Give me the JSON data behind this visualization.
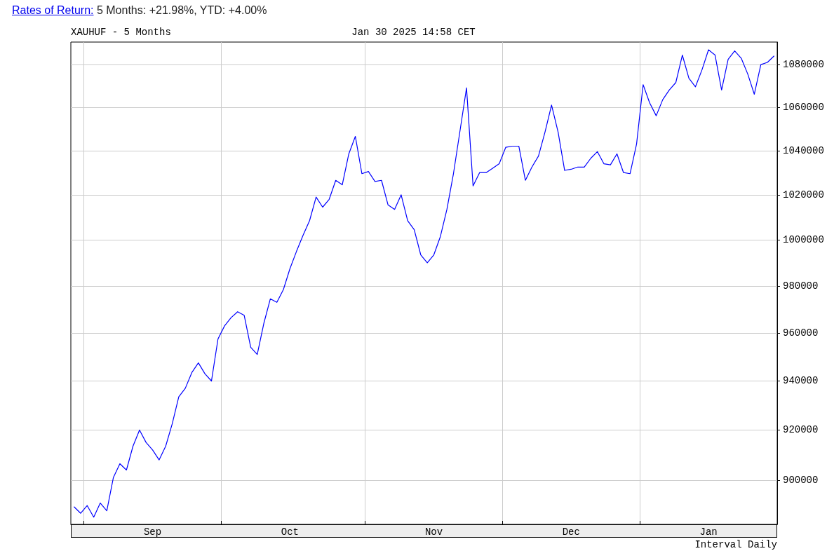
{
  "chart_data": {
    "type": "line",
    "title": "Rates of Return: 5 Months: +21.98%, YTD: +4.00%",
    "subtitle": "XAUHUF - 5 Months",
    "annotations": [
      "Jan 30 2025 14:58 CET",
      "Interval Daily"
    ],
    "categories": [
      null,
      null,
      null,
      null,
      null,
      null,
      null,
      null,
      null,
      null,
      null,
      null,
      "Sep",
      null,
      null,
      null,
      null,
      null,
      null,
      null,
      null,
      null,
      null,
      null,
      null,
      null,
      null,
      null,
      null,
      null,
      null,
      null,
      null,
      "Oct",
      null,
      null,
      null,
      null,
      null,
      null,
      null,
      null,
      null,
      null,
      null,
      null,
      null,
      null,
      null,
      null,
      null,
      null,
      null,
      null,
      null,
      "Nov",
      null,
      null,
      null,
      null,
      null,
      null,
      null,
      null,
      null,
      null,
      null,
      null,
      null,
      null,
      null,
      null,
      null,
      null,
      null,
      null,
      "Dec",
      null,
      null,
      null,
      null,
      null,
      null,
      null,
      null,
      null,
      null,
      null,
      null,
      null,
      null,
      null,
      null,
      null,
      null,
      null,
      null,
      "Jan",
      null,
      null,
      null,
      null,
      null,
      null,
      null,
      null,
      null,
      null
    ],
    "series": [
      {
        "color": "#0000ff",
        "values": [
          889500,
          887000,
          890000,
          885500,
          891000,
          888000,
          901000,
          906500,
          904000,
          913500,
          920000,
          915000,
          912000,
          908000,
          913500,
          922500,
          933500,
          937000,
          943500,
          947500,
          943000,
          940000,
          957500,
          963000,
          966500,
          969000,
          967500,
          954000,
          951000,
          964000,
          974500,
          973000,
          978500,
          987500,
          995000,
          1002000,
          1008500,
          1019000,
          1014500,
          1018000,
          1026500,
          1024500,
          1038500,
          1046500,
          1029500,
          1030500,
          1026000,
          1026500,
          1015500,
          1013500,
          1020000,
          1008500,
          1004500,
          993500,
          990000,
          993500,
          1001500,
          1013500,
          1029500,
          1049000,
          1069000,
          1024000,
          1030000,
          1030000,
          1032000,
          1034000,
          1041500,
          1042000,
          1042000,
          1026500,
          1032500,
          1037500,
          1048500,
          1061000,
          1048500,
          1031000,
          1031500,
          1032500,
          1032500,
          1036500,
          1039500,
          1034000,
          1033500,
          1038500,
          1030000,
          1029500,
          1043000,
          1070500,
          1062000,
          1056000,
          1063500,
          1068000,
          1071500,
          1084500,
          1073500,
          1069500,
          1077500,
          1087000,
          1084500,
          1068000,
          1082500,
          1086500,
          1083000,
          1075500,
          1066000,
          1080000,
          1081000,
          1084000
        ]
      }
    ],
    "ylim": [
      882700,
      1090700
    ],
    "yticks": [
      900000,
      920000,
      940000,
      960000,
      980000,
      1000000,
      1020000,
      1040000,
      1060000,
      1080000
    ],
    "log": true,
    "grid": true,
    "marker": "none",
    "line_style": "solid"
  }
}
